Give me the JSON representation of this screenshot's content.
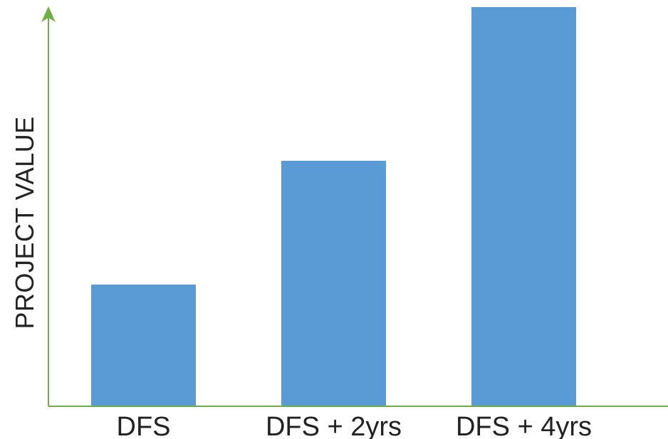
{
  "colors": {
    "bar": "#5b9bd5",
    "axis": "#70ad47",
    "text": "#222222"
  },
  "chart_data": {
    "type": "bar",
    "title": "",
    "xlabel": "",
    "ylabel": "PROJECT VALUE",
    "categories": [
      "DFS",
      "DFS + 2yrs",
      "DFS + 4yrs"
    ],
    "values": [
      30.5,
      61.5,
      100
    ],
    "ylim": [
      0,
      100
    ],
    "grid": false,
    "legend": "none"
  }
}
